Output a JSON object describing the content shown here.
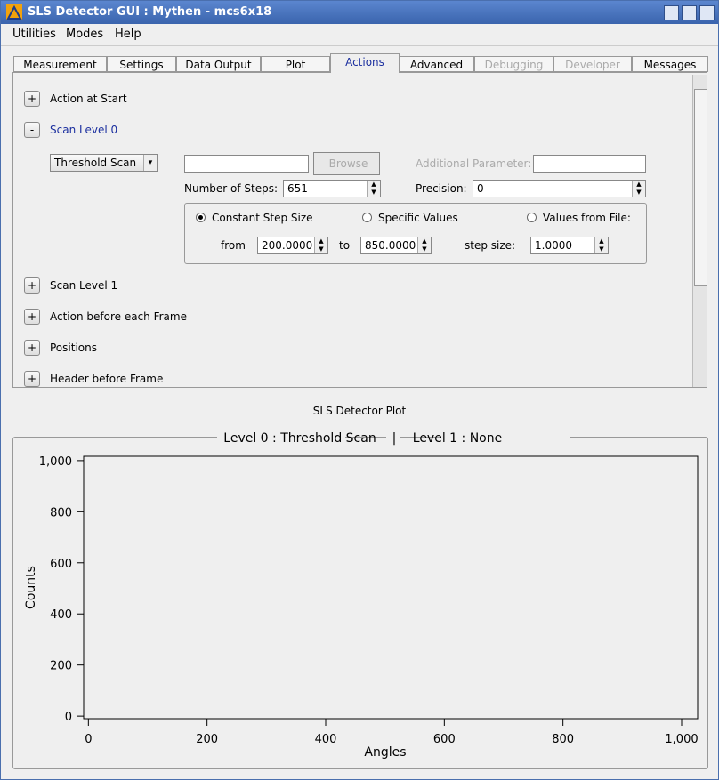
{
  "window": {
    "title": "SLS Detector GUI : Mythen - mcs6x18"
  },
  "menu": [
    "Utilities",
    "Modes",
    "Help"
  ],
  "tabs": [
    {
      "label": "Measurement",
      "state": "normal"
    },
    {
      "label": "Settings",
      "state": "normal"
    },
    {
      "label": "Data Output",
      "state": "normal"
    },
    {
      "label": "Plot",
      "state": "normal"
    },
    {
      "label": "Actions",
      "state": "active"
    },
    {
      "label": "Advanced",
      "state": "normal"
    },
    {
      "label": "Debugging",
      "state": "disabled"
    },
    {
      "label": "Developer",
      "state": "disabled"
    },
    {
      "label": "Messages",
      "state": "normal"
    }
  ],
  "sections": [
    {
      "toggle": "+",
      "label": "Action at Start"
    },
    {
      "toggle": "-",
      "label": "Scan Level 0"
    },
    {
      "toggle": "+",
      "label": "Scan Level 1"
    },
    {
      "toggle": "+",
      "label": "Action before each Frame"
    },
    {
      "toggle": "+",
      "label": "Positions"
    },
    {
      "toggle": "+",
      "label": "Header before Frame"
    }
  ],
  "scan": {
    "mode": "Threshold Scan",
    "browse": "Browse",
    "additional_parameter": "Additional Parameter:",
    "steps_label": "Number of Steps:",
    "steps": "651",
    "precision_label": "Precision:",
    "precision": "0",
    "radios": [
      {
        "label": "Constant Step Size",
        "checked": true
      },
      {
        "label": "Specific Values",
        "checked": false
      },
      {
        "label": "Values from File:",
        "checked": false
      }
    ],
    "from_label": "from",
    "from": "200.0000",
    "to_label": "to",
    "to": "850.0000",
    "step_label": "step size:",
    "step": "1.0000"
  },
  "plot_header": "SLS Detector Plot",
  "plot_title": [
    "Level 0 : Threshold Scan",
    "|",
    "Level 1 : None"
  ],
  "chart": {
    "xlabel": "Angles",
    "ylabel": "Counts",
    "xlim": [
      -8,
      1027
    ],
    "ylim": [
      -10,
      1017
    ],
    "xticks": [
      0,
      200,
      400,
      600,
      800,
      {
        "value": 1000,
        "label": "1,000"
      }
    ],
    "yticks": [
      0,
      200,
      400,
      600,
      800,
      {
        "value": 1000,
        "label": "1,000"
      }
    ]
  }
}
